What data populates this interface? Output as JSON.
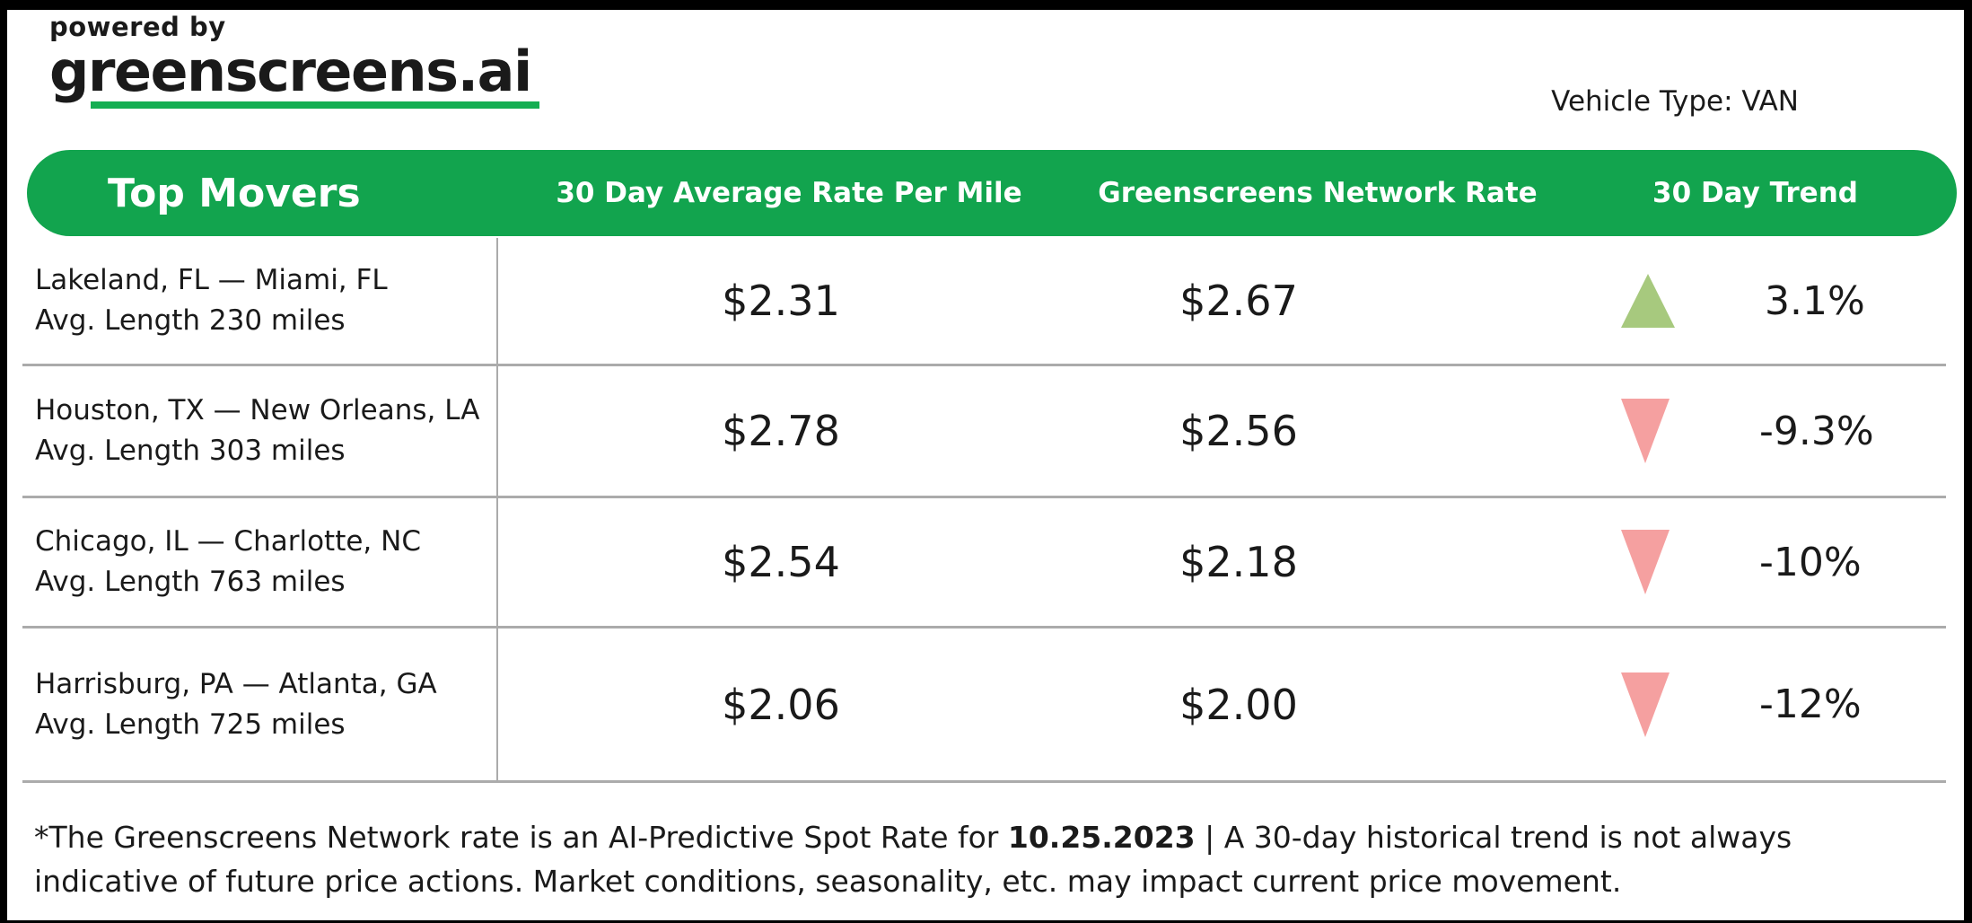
{
  "branding": {
    "powered_by": "powered by",
    "logo_text": "greenscreens.ai"
  },
  "meta": {
    "vehicle_type": "Vehicle Type: VAN"
  },
  "table": {
    "title": "Top Movers",
    "columns": {
      "avg_rate": "30 Day Average Rate Per Mile",
      "network_rate": "Greenscreens Network Rate",
      "trend": "30 Day Trend"
    },
    "rows": [
      {
        "lane": "Lakeland, FL — Miami, FL",
        "avg_length": "Avg. Length 230 miles",
        "avg_rate": "$2.31",
        "network_rate": "$2.67",
        "trend_direction": "up",
        "trend_pct": "3.1%"
      },
      {
        "lane": "Houston, TX — New Orleans, LA",
        "avg_length": "Avg. Length 303 miles",
        "avg_rate": "$2.78",
        "network_rate": "$2.56",
        "trend_direction": "down",
        "trend_pct": "-9.3%"
      },
      {
        "lane": "Chicago, IL — Charlotte, NC",
        "avg_length": "Avg. Length 763 miles",
        "avg_rate": "$2.54",
        "network_rate": "$2.18",
        "trend_direction": "down",
        "trend_pct": "-10%"
      },
      {
        "lane": "Harrisburg, PA — Atlanta, GA",
        "avg_length": " Avg. Length 725 miles",
        "avg_rate": "$2.06",
        "network_rate": "$2.00",
        "trend_direction": "down",
        "trend_pct": "-12%"
      }
    ]
  },
  "footnote": {
    "part1": "*The Greenscreens Network rate is an AI-Predictive Spot Rate for ",
    "date_bold": "10.25.2023",
    "part2": " | A 30-day historical trend is not always indicative of future price actions. Market conditions, seasonality, etc. may impact current price movement."
  },
  "colors": {
    "brand_green": "#12A44E",
    "underline_green": "#15AE52",
    "trend_up": "#A7C97E",
    "trend_down": "#F5A0A0",
    "divider_gray": "#ABABAB"
  }
}
